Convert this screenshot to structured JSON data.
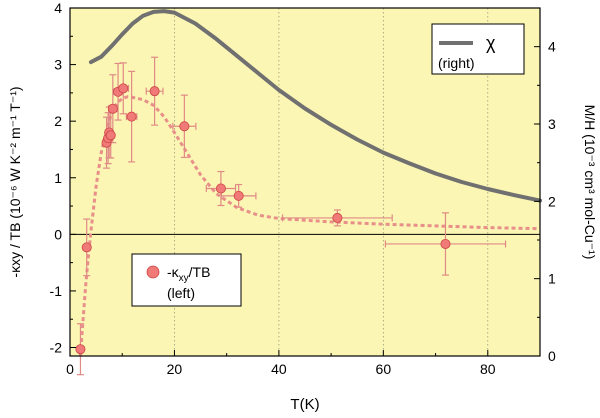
{
  "chart_data": {
    "type": "scatter",
    "xlabel": "T(K)",
    "ylabel_left": "-κxy / TB (10⁻⁶ W K⁻² m⁻¹ T⁻¹)",
    "ylabel_right": "M/H (10⁻³ cm³ mol-Cu⁻¹)",
    "xlim": [
      0,
      90
    ],
    "ylim_left": [
      -2.15,
      4
    ],
    "ylim_right": [
      0,
      4.5
    ],
    "x_ticks": [
      "0",
      "20",
      "40",
      "60",
      "80"
    ],
    "y_left_ticks": [
      "-2",
      "-1",
      "0",
      "1",
      "2",
      "3",
      "4"
    ],
    "y_right_ticks": [
      "0",
      "1",
      "2",
      "3",
      "4"
    ],
    "grid": "vertical dotted at x = 20, 40, 60, 80",
    "background": "#fbf6b4",
    "colors": {
      "chi": "#707070",
      "points": "#f07a78",
      "fit": "#e88f8a",
      "errorbars": "#e08a86"
    },
    "series": [
      {
        "name": "χ",
        "axis": "right",
        "style": "solid line",
        "x": [
          4,
          6,
          8,
          10,
          12,
          14,
          16,
          18,
          20,
          24,
          28,
          32,
          36,
          40,
          45,
          50,
          55,
          60,
          65,
          70,
          75,
          80,
          85,
          90
        ],
        "y": [
          3.8,
          3.87,
          4.01,
          4.16,
          4.3,
          4.4,
          4.45,
          4.46,
          4.44,
          4.3,
          4.1,
          3.88,
          3.66,
          3.44,
          3.2,
          2.99,
          2.8,
          2.63,
          2.49,
          2.36,
          2.25,
          2.16,
          2.08,
          2.01
        ]
      },
      {
        "name": "-κxy/TB",
        "axis": "left",
        "style": "circle markers with error bars",
        "points": [
          {
            "x": 2.0,
            "y": -2.03,
            "yerr": 0.45,
            "xerr": 0.3
          },
          {
            "x": 3.2,
            "y": -0.23,
            "yerr": 0.5,
            "xerr": 0.4
          },
          {
            "x": 7.0,
            "y": 1.62,
            "yerr": 0.45,
            "xerr": 0.6
          },
          {
            "x": 7.3,
            "y": 1.7,
            "yerr": 0.45,
            "xerr": 0.6
          },
          {
            "x": 7.5,
            "y": 1.8,
            "yerr": 0.45,
            "xerr": 0.6
          },
          {
            "x": 7.8,
            "y": 1.75,
            "yerr": 0.4,
            "xerr": 0.6
          },
          {
            "x": 8.2,
            "y": 2.22,
            "yerr": 0.6,
            "xerr": 0.8
          },
          {
            "x": 9.2,
            "y": 2.52,
            "yerr": 0.5,
            "xerr": 0.8
          },
          {
            "x": 10.2,
            "y": 2.58,
            "yerr": 0.45,
            "xerr": 1.0
          },
          {
            "x": 11.8,
            "y": 2.08,
            "yerr": 0.8,
            "xerr": 1.0
          },
          {
            "x": 16.2,
            "y": 2.53,
            "yerr": 0.6,
            "xerr": 1.6
          },
          {
            "x": 21.9,
            "y": 1.91,
            "yerr": 0.55,
            "xerr": 2.2
          },
          {
            "x": 28.9,
            "y": 0.81,
            "yerr": 0.3,
            "xerr": 2.8
          },
          {
            "x": 32.3,
            "y": 0.68,
            "yerr": 0.2,
            "xerr": 3.3
          },
          {
            "x": 51.2,
            "y": 0.29,
            "yerr": 0.14,
            "xerr": 10.5
          },
          {
            "x": 71.9,
            "y": -0.17,
            "yerr": 0.55,
            "xerr": 11.5
          }
        ]
      },
      {
        "name": "",
        "axis": "left",
        "style": "dashed guide line",
        "x": [
          2,
          2.5,
          3,
          3.5,
          4,
          5,
          6,
          7,
          8,
          9,
          10,
          11,
          12,
          14,
          16,
          18,
          20,
          22,
          25,
          28,
          32,
          36,
          40,
          45,
          50,
          55,
          60,
          70,
          80,
          90
        ],
        "y": [
          -2.15,
          -1.5,
          -0.9,
          -0.4,
          0.05,
          0.85,
          1.45,
          1.85,
          2.15,
          2.32,
          2.4,
          2.43,
          2.42,
          2.38,
          2.28,
          2.08,
          1.8,
          1.5,
          1.05,
          0.72,
          0.47,
          0.34,
          0.28,
          0.25,
          0.22,
          0.2,
          0.18,
          0.15,
          0.12,
          0.1
        ]
      }
    ],
    "legend": [
      {
        "label": "χ",
        "sublabel": "(right)",
        "placement": "top-right"
      },
      {
        "label": "-κ",
        "sub": "xy",
        "suffix": "/TB",
        "sublabel": "(left)",
        "placement": "bottom-left"
      }
    ]
  }
}
